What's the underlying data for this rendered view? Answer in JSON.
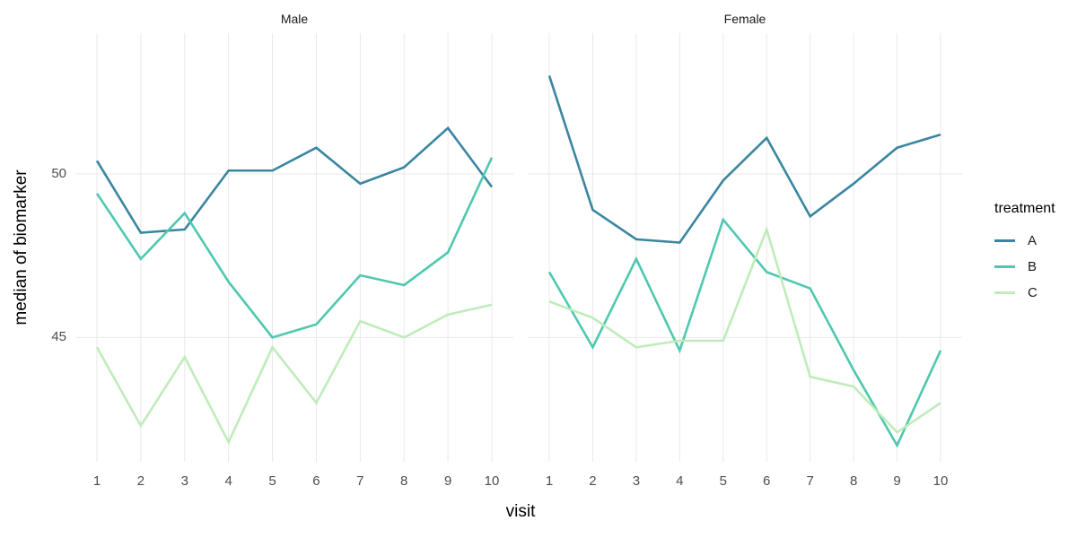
{
  "figure": {
    "y_axis_title": "median of biomarker",
    "x_axis_title": "visit",
    "facets": [
      "Male",
      "Female"
    ],
    "legend": {
      "title": "treatment",
      "items": [
        {
          "label": "A",
          "color": "#3a86a0"
        },
        {
          "label": "B",
          "color": "#4fc8af"
        },
        {
          "label": "C",
          "color": "#bfecba"
        }
      ]
    },
    "colors": {
      "grid": "#e9e9e9",
      "tick_text": "#4d4d4d",
      "background": "#ffffff"
    }
  },
  "chart_data": [
    {
      "type": "line",
      "facet": "Male",
      "x": [
        1,
        2,
        3,
        4,
        5,
        6,
        7,
        8,
        9,
        10
      ],
      "series": [
        {
          "name": "A",
          "color": "#3a86a0",
          "values": [
            50.4,
            48.2,
            48.3,
            50.1,
            50.1,
            50.8,
            49.7,
            50.2,
            51.4,
            49.6
          ]
        },
        {
          "name": "B",
          "color": "#4fc8af",
          "values": [
            49.4,
            47.4,
            48.8,
            46.7,
            45.0,
            45.4,
            46.9,
            46.6,
            47.6,
            50.5
          ]
        },
        {
          "name": "C",
          "color": "#bfecba",
          "values": [
            44.7,
            42.3,
            44.4,
            41.8,
            44.7,
            43.0,
            45.5,
            45.0,
            45.7,
            46.0
          ]
        }
      ],
      "xlabel": "visit",
      "ylabel": "median of biomarker",
      "yticks": [
        {
          "value": 50,
          "label": "50"
        },
        {
          "value": 45,
          "label": "45"
        }
      ],
      "ylim": [
        41.2,
        54.3
      ],
      "grid": true,
      "legend_position": "right"
    },
    {
      "type": "line",
      "facet": "Female",
      "x": [
        1,
        2,
        3,
        4,
        5,
        6,
        7,
        8,
        9,
        10
      ],
      "series": [
        {
          "name": "A",
          "color": "#3a86a0",
          "values": [
            53.0,
            48.9,
            48.0,
            47.9,
            49.8,
            51.1,
            48.7,
            49.7,
            50.8,
            51.2
          ]
        },
        {
          "name": "B",
          "color": "#4fc8af",
          "values": [
            47.0,
            44.7,
            47.4,
            44.6,
            48.6,
            47.0,
            46.5,
            44.0,
            41.7,
            44.6
          ]
        },
        {
          "name": "C",
          "color": "#bfecba",
          "values": [
            46.1,
            45.6,
            44.7,
            44.9,
            44.9,
            48.3,
            43.8,
            43.5,
            42.1,
            43.0
          ]
        }
      ],
      "xlabel": "visit",
      "ylabel": "median of biomarker",
      "yticks": [
        {
          "value": 50,
          "label": "50"
        },
        {
          "value": 45,
          "label": "45"
        }
      ],
      "ylim": [
        41.2,
        54.3
      ],
      "grid": true,
      "legend_position": "right"
    }
  ]
}
